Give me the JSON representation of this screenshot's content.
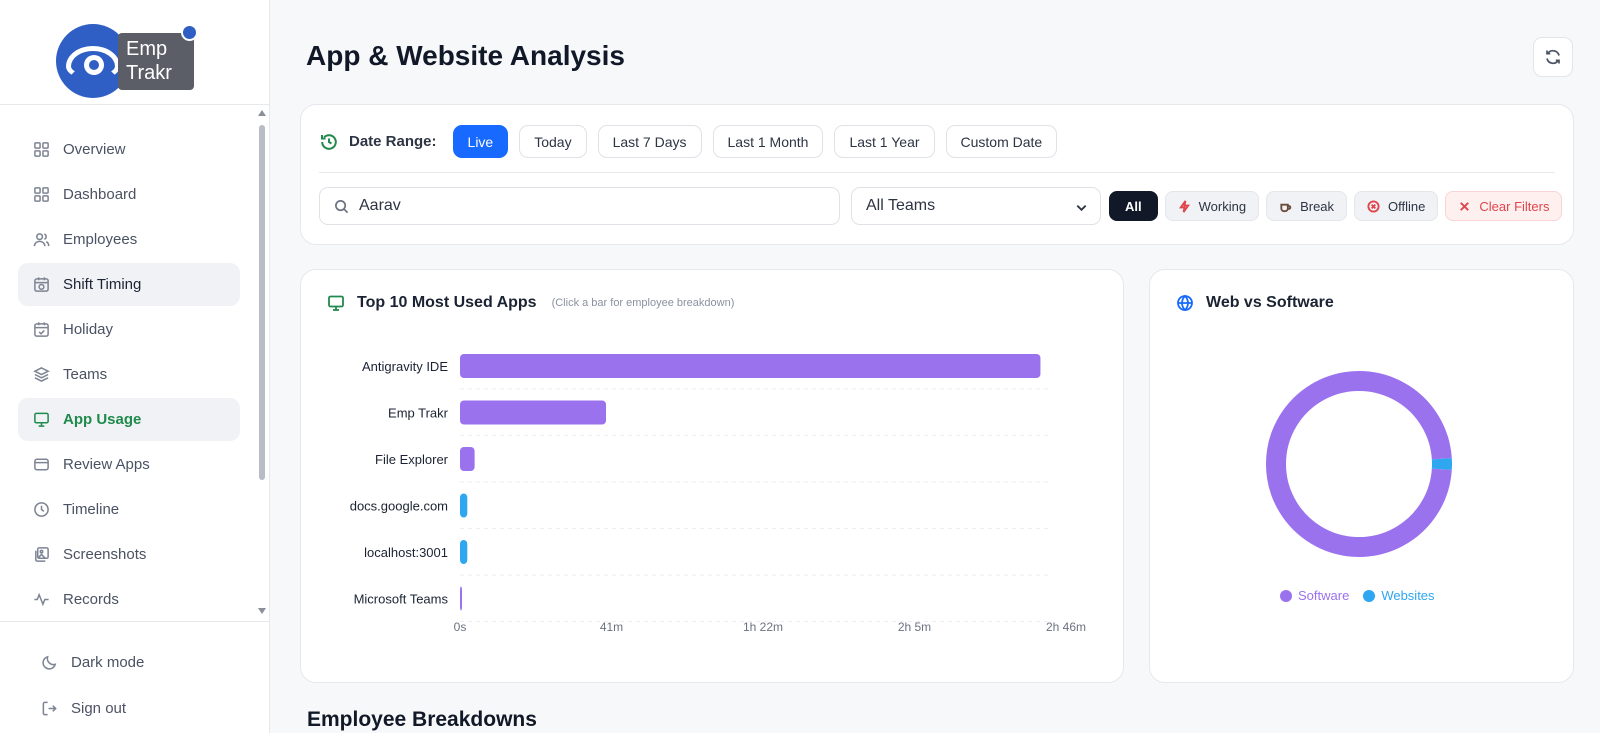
{
  "app": {
    "logo_line1": "Emp",
    "logo_line2": "Trakr"
  },
  "sidebar": {
    "items": [
      {
        "label": "Overview",
        "icon": "grid-icon",
        "state": "normal"
      },
      {
        "label": "Dashboard",
        "icon": "grid-icon",
        "state": "normal"
      },
      {
        "label": "Employees",
        "icon": "users-icon",
        "state": "normal"
      },
      {
        "label": "Shift Timing",
        "icon": "calendar-clock-icon",
        "state": "hover"
      },
      {
        "label": "Holiday",
        "icon": "calendar-check-icon",
        "state": "normal"
      },
      {
        "label": "Teams",
        "icon": "layers-icon",
        "state": "normal"
      },
      {
        "label": "App Usage",
        "icon": "monitor-icon",
        "state": "active"
      },
      {
        "label": "Review Apps",
        "icon": "card-icon",
        "state": "normal"
      },
      {
        "label": "Timeline",
        "icon": "clock-icon",
        "state": "normal"
      },
      {
        "label": "Screenshots",
        "icon": "images-icon",
        "state": "normal"
      },
      {
        "label": "Records",
        "icon": "activity-icon",
        "state": "normal"
      }
    ],
    "dark_mode_label": "Dark mode",
    "sign_out_label": "Sign out"
  },
  "header": {
    "title": "App & Website Analysis"
  },
  "filters": {
    "date_range_label": "Date Range:",
    "date_options": [
      "Live",
      "Today",
      "Last 7 Days",
      "Last 1 Month",
      "Last 1 Year",
      "Custom Date"
    ],
    "date_selected": "Live",
    "search_value": "Aarav",
    "team_select": "All Teams",
    "status": {
      "all": "All",
      "working": "Working",
      "break": "Break",
      "offline": "Offline",
      "clear": "Clear Filters"
    }
  },
  "apps_chart": {
    "title": "Top 10 Most Used Apps",
    "hint": "(Click a bar for employee breakdown)"
  },
  "donut_chart": {
    "title": "Web vs Software"
  },
  "section": {
    "employee_breakdowns": "Employee Breakdowns"
  },
  "colors": {
    "software": "#9b72ee",
    "websites": "#2ea6f0",
    "accent": "#1769ff",
    "active_nav": "#1f8a4c"
  },
  "chart_data": [
    {
      "type": "bar",
      "orientation": "horizontal",
      "categories": [
        "Antigravity IDE",
        "Emp Trakr",
        "File Explorer",
        "docs.google.com",
        "localhost:3001",
        "Microsoft Teams"
      ],
      "values_minutes": [
        159,
        40,
        4,
        2,
        2,
        0.5
      ],
      "bar_kind": [
        "software",
        "software",
        "software",
        "website",
        "website",
        "software"
      ],
      "x_ticks": [
        "0s",
        "41m",
        "1h 22m",
        "2h 5m",
        "2h 46m"
      ],
      "xlim_minutes": [
        0,
        166
      ],
      "title": "Top 10 Most Used Apps",
      "grid": true
    },
    {
      "type": "pie",
      "donut": true,
      "labels": [
        "Software",
        "Websites"
      ],
      "values": [
        98,
        2
      ],
      "title": "Web vs Software",
      "legend": "bottom"
    }
  ]
}
